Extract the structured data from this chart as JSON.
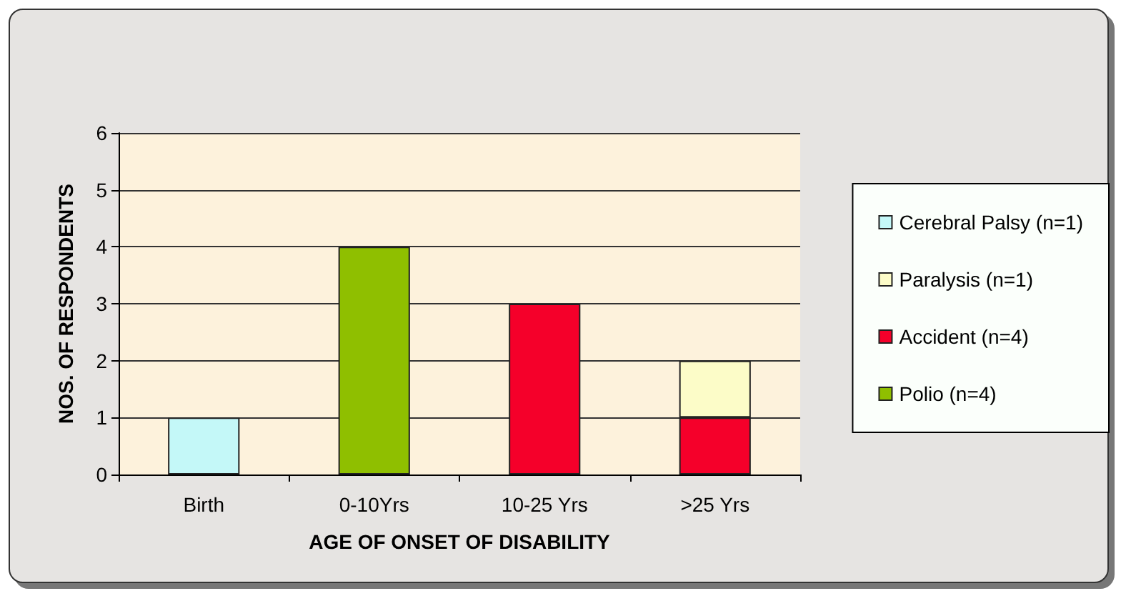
{
  "chart_data": {
    "type": "bar",
    "stacked": true,
    "xlabel": "AGE OF ONSET OF DISABILITY",
    "ylabel": "NOS. OF RESPONDENTS",
    "categories": [
      "Birth",
      "0-10Yrs",
      "10-25 Yrs",
      ">25 Yrs"
    ],
    "series": [
      {
        "name": "Polio (n=4)",
        "color": "#8fbf00",
        "values": [
          null,
          4,
          null,
          null
        ]
      },
      {
        "name": "Accident (n=4)",
        "color": "#f5002a",
        "values": [
          null,
          null,
          3,
          1
        ]
      },
      {
        "name": "Paralysis (n=1)",
        "color": "#fcfcc8",
        "values": [
          null,
          null,
          null,
          1
        ]
      },
      {
        "name": "Cerebral Palsy (n=1)",
        "color": "#c4f8f8",
        "values": [
          1,
          null,
          null,
          null
        ]
      }
    ],
    "ylim": [
      0,
      6
    ],
    "yticks": [
      0,
      1,
      2,
      3,
      4,
      5,
      6
    ],
    "grid": "y",
    "legend": "right"
  }
}
